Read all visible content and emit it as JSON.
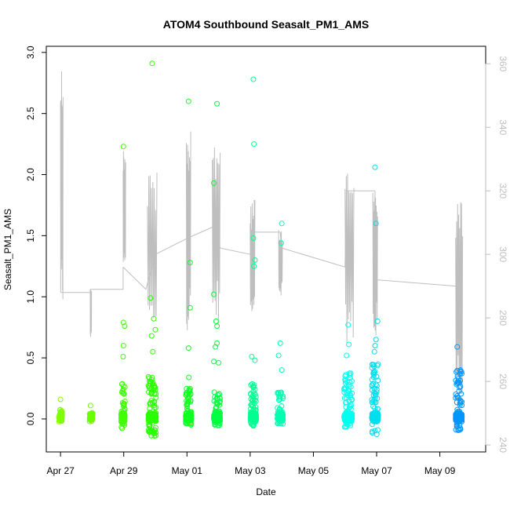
{
  "chart_data": {
    "type": "scatter",
    "title": "ATOM4 Southbound Seasalt_PM1_AMS",
    "xlabel": "Date",
    "ylabel": "Seasalt_PM1_AMS",
    "x_unit": "days since Apr 27",
    "xlim": [
      -0.45,
      13.45
    ],
    "ylim": [
      -0.27,
      3.05
    ],
    "x_ticks": [
      {
        "value": 0,
        "label": "Apr 27"
      },
      {
        "value": 2,
        "label": "Apr 29"
      },
      {
        "value": 4,
        "label": "May 01"
      },
      {
        "value": 6,
        "label": "May 03"
      },
      {
        "value": 8,
        "label": "May 05"
      },
      {
        "value": 10,
        "label": "May 07"
      },
      {
        "value": 12,
        "label": "May 09"
      }
    ],
    "y_ticks": [
      0.0,
      0.5,
      1.0,
      1.5,
      2.0,
      2.5,
      3.0
    ],
    "y_tick_labels": [
      "0.0",
      "0.5",
      "1.0",
      "1.5",
      "2.0",
      "2.5",
      "3.0"
    ],
    "right_axis": {
      "ylim": [
        237.8,
        365.5
      ],
      "ticks": [
        240,
        260,
        280,
        300,
        320,
        340,
        360
      ],
      "tick_labels": [
        "240",
        "260",
        "280",
        "300",
        "320",
        "340",
        "360"
      ],
      "color": "#bebebe"
    },
    "flights": [
      {
        "center": 0.0,
        "spread": 0.05,
        "n": 60,
        "color": "#80ff00",
        "bulk_lo": -0.03,
        "bulk_hi": 0.08
      },
      {
        "center": 0.97,
        "spread": 0.05,
        "n": 40,
        "color": "#6aff00",
        "bulk_lo": -0.03,
        "bulk_hi": 0.05
      },
      {
        "center": 1.98,
        "spread": 0.06,
        "n": 160,
        "color": "#40ff00",
        "bulk_lo": -0.08,
        "bulk_hi": 0.3
      },
      {
        "center": 2.9,
        "spread": 0.12,
        "n": 260,
        "color": "#2aff00",
        "bulk_lo": -0.14,
        "bulk_hi": 0.35
      },
      {
        "center": 4.05,
        "spread": 0.09,
        "n": 180,
        "color": "#10ff20",
        "bulk_lo": -0.05,
        "bulk_hi": 0.25
      },
      {
        "center": 4.95,
        "spread": 0.1,
        "n": 200,
        "color": "#00ff40",
        "bulk_lo": -0.06,
        "bulk_hi": 0.22
      },
      {
        "center": 6.1,
        "spread": 0.09,
        "n": 220,
        "color": "#00ff90",
        "bulk_lo": -0.06,
        "bulk_hi": 0.3
      },
      {
        "center": 6.95,
        "spread": 0.09,
        "n": 160,
        "color": "#00ffb0",
        "bulk_lo": -0.05,
        "bulk_hi": 0.22
      },
      {
        "center": 9.1,
        "spread": 0.13,
        "n": 240,
        "color": "#00ffee",
        "bulk_lo": -0.07,
        "bulk_hi": 0.38
      },
      {
        "center": 9.95,
        "spread": 0.1,
        "n": 240,
        "color": "#00ddee",
        "bulk_lo": -0.14,
        "bulk_hi": 0.45
      },
      {
        "center": 12.6,
        "spread": 0.1,
        "n": 260,
        "color": "#0096ff",
        "bulk_lo": -0.1,
        "bulk_hi": 0.4
      }
    ],
    "outliers": [
      {
        "x": 0.0,
        "y": 0.16,
        "color": "#80ff00"
      },
      {
        "x": 0.95,
        "y": 0.11,
        "color": "#6aff00"
      },
      {
        "x": 1.99,
        "y": 2.23,
        "color": "#40ff00"
      },
      {
        "x": 1.99,
        "y": 0.79,
        "color": "#40ff00"
      },
      {
        "x": 2.03,
        "y": 0.76,
        "color": "#40ff00"
      },
      {
        "x": 1.99,
        "y": 0.6,
        "color": "#40ff00"
      },
      {
        "x": 1.98,
        "y": 0.51,
        "color": "#40ff00"
      },
      {
        "x": 2.9,
        "y": 2.91,
        "color": "#2aff00"
      },
      {
        "x": 2.85,
        "y": 0.99,
        "color": "#2aff00"
      },
      {
        "x": 2.95,
        "y": 0.82,
        "color": "#2aff00"
      },
      {
        "x": 3.0,
        "y": 0.73,
        "color": "#2aff00"
      },
      {
        "x": 2.88,
        "y": 0.68,
        "color": "#2aff00"
      },
      {
        "x": 2.92,
        "y": 0.55,
        "color": "#2aff00"
      },
      {
        "x": 4.05,
        "y": 2.6,
        "color": "#10ff20"
      },
      {
        "x": 4.1,
        "y": 1.28,
        "color": "#10ff20"
      },
      {
        "x": 4.1,
        "y": 0.91,
        "color": "#10ff20"
      },
      {
        "x": 4.05,
        "y": 0.58,
        "color": "#10ff20"
      },
      {
        "x": 4.06,
        "y": 0.34,
        "color": "#10ff20"
      },
      {
        "x": 4.95,
        "y": 2.58,
        "color": "#00ff40"
      },
      {
        "x": 4.85,
        "y": 1.93,
        "color": "#00ff40"
      },
      {
        "x": 4.85,
        "y": 1.02,
        "color": "#00ff40"
      },
      {
        "x": 4.92,
        "y": 0.8,
        "color": "#00ff40"
      },
      {
        "x": 4.95,
        "y": 0.76,
        "color": "#00ff40"
      },
      {
        "x": 4.95,
        "y": 0.62,
        "color": "#00ff40"
      },
      {
        "x": 4.9,
        "y": 0.59,
        "color": "#00ff40"
      },
      {
        "x": 4.85,
        "y": 0.47,
        "color": "#00ff40"
      },
      {
        "x": 5.0,
        "y": 0.46,
        "color": "#00ff40"
      },
      {
        "x": 6.1,
        "y": 2.78,
        "color": "#00ff90"
      },
      {
        "x": 6.12,
        "y": 2.25,
        "color": "#00ff90"
      },
      {
        "x": 6.1,
        "y": 1.48,
        "color": "#00ff90"
      },
      {
        "x": 6.15,
        "y": 1.3,
        "color": "#00ff90"
      },
      {
        "x": 6.12,
        "y": 1.25,
        "color": "#00ff90"
      },
      {
        "x": 6.05,
        "y": 0.51,
        "color": "#00ff90"
      },
      {
        "x": 6.15,
        "y": 0.48,
        "color": "#00ff90"
      },
      {
        "x": 7.0,
        "y": 1.6,
        "color": "#00ffb0"
      },
      {
        "x": 6.98,
        "y": 1.44,
        "color": "#00ffb0"
      },
      {
        "x": 6.95,
        "y": 0.62,
        "color": "#00ffb0"
      },
      {
        "x": 6.9,
        "y": 0.52,
        "color": "#00ffb0"
      },
      {
        "x": 7.0,
        "y": 0.4,
        "color": "#00ffb0"
      },
      {
        "x": 9.1,
        "y": 0.77,
        "color": "#00ffee"
      },
      {
        "x": 9.12,
        "y": 0.61,
        "color": "#00ffee"
      },
      {
        "x": 9.05,
        "y": 0.52,
        "color": "#00ffee"
      },
      {
        "x": 9.95,
        "y": 2.06,
        "color": "#00ddee"
      },
      {
        "x": 9.98,
        "y": 1.6,
        "color": "#00ddee"
      },
      {
        "x": 10.03,
        "y": 0.8,
        "color": "#00ddee"
      },
      {
        "x": 9.98,
        "y": 0.65,
        "color": "#00ddee"
      },
      {
        "x": 9.95,
        "y": 0.6,
        "color": "#00ddee"
      },
      {
        "x": 9.93,
        "y": 0.55,
        "color": "#00ddee"
      },
      {
        "x": 12.55,
        "y": 0.59,
        "color": "#0096ff"
      },
      {
        "x": 12.65,
        "y": 0.4,
        "color": "#0096ff"
      }
    ],
    "altitude_line_color": "#bebebe",
    "altitude_segments": [
      [
        [
          0.0,
          288
        ],
        [
          0.95,
          288
        ],
        [
          0.95,
          274
        ],
        [
          0.95,
          289
        ]
      ],
      [
        [
          0.95,
          289
        ],
        [
          1.98,
          289
        ],
        [
          1.98,
          296
        ]
      ],
      [
        [
          1.98,
          296
        ],
        [
          2.7,
          289
        ],
        [
          3.0,
          300
        ],
        [
          4.0,
          305
        ]
      ],
      [
        [
          4.0,
          305
        ],
        [
          4.9,
          309
        ]
      ],
      [
        [
          4.9,
          309
        ],
        [
          5.05,
          302
        ],
        [
          6.0,
          300
        ],
        [
          6.05,
          307
        ],
        [
          6.95,
          307
        ]
      ],
      [
        [
          6.95,
          307
        ],
        [
          7.0,
          302
        ],
        [
          9.0,
          296
        ],
        [
          9.05,
          320
        ],
        [
          9.95,
          320
        ]
      ],
      [
        [
          9.95,
          320
        ],
        [
          9.9,
          292
        ],
        [
          10.0,
          292
        ],
        [
          12.5,
          290
        ],
        [
          12.65,
          290
        ]
      ]
    ],
    "altitude_bursts": [
      {
        "x0": 0.0,
        "x1": 0.08,
        "lo": 282,
        "hi": 361
      },
      {
        "x0": 0.94,
        "x1": 0.98,
        "lo": 274,
        "hi": 290
      },
      {
        "x0": 1.98,
        "x1": 2.06,
        "lo": 296,
        "hi": 334
      },
      {
        "x0": 2.75,
        "x1": 3.05,
        "lo": 275,
        "hi": 326
      },
      {
        "x0": 3.98,
        "x1": 4.12,
        "lo": 276,
        "hi": 339
      },
      {
        "x0": 4.8,
        "x1": 5.05,
        "lo": 278,
        "hi": 338
      },
      {
        "x0": 6.0,
        "x1": 6.15,
        "lo": 277,
        "hi": 318
      },
      {
        "x0": 6.9,
        "x1": 7.02,
        "lo": 287,
        "hi": 309
      },
      {
        "x0": 9.0,
        "x1": 9.28,
        "lo": 272,
        "hi": 329
      },
      {
        "x0": 9.88,
        "x1": 10.03,
        "lo": 273,
        "hi": 322
      },
      {
        "x0": 12.5,
        "x1": 12.72,
        "lo": 254,
        "hi": 318
      }
    ]
  }
}
